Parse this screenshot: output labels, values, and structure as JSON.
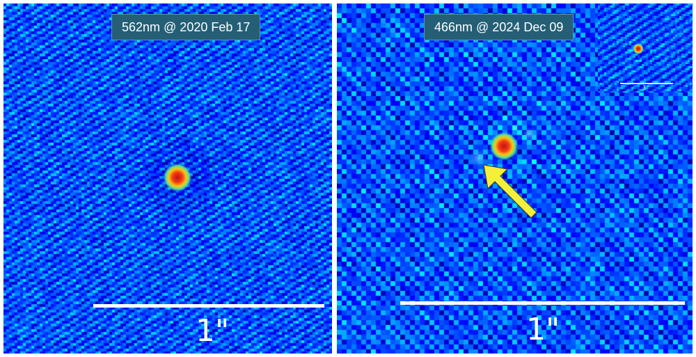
{
  "left_panel": {
    "caption": "562nm @ 2020 Feb 17",
    "scale_label": "1\""
  },
  "right_panel": {
    "caption": "466nm @ 2024 Dec 09",
    "scale_label": "1\"",
    "inset": {
      "scale_label": "1\""
    },
    "arrow": {
      "icon": "arrow-icon",
      "color": "#f4ef3a"
    }
  },
  "colors": {
    "background": "#1834d8",
    "caption_bg": "#245f76",
    "divider": "#ffffff"
  }
}
